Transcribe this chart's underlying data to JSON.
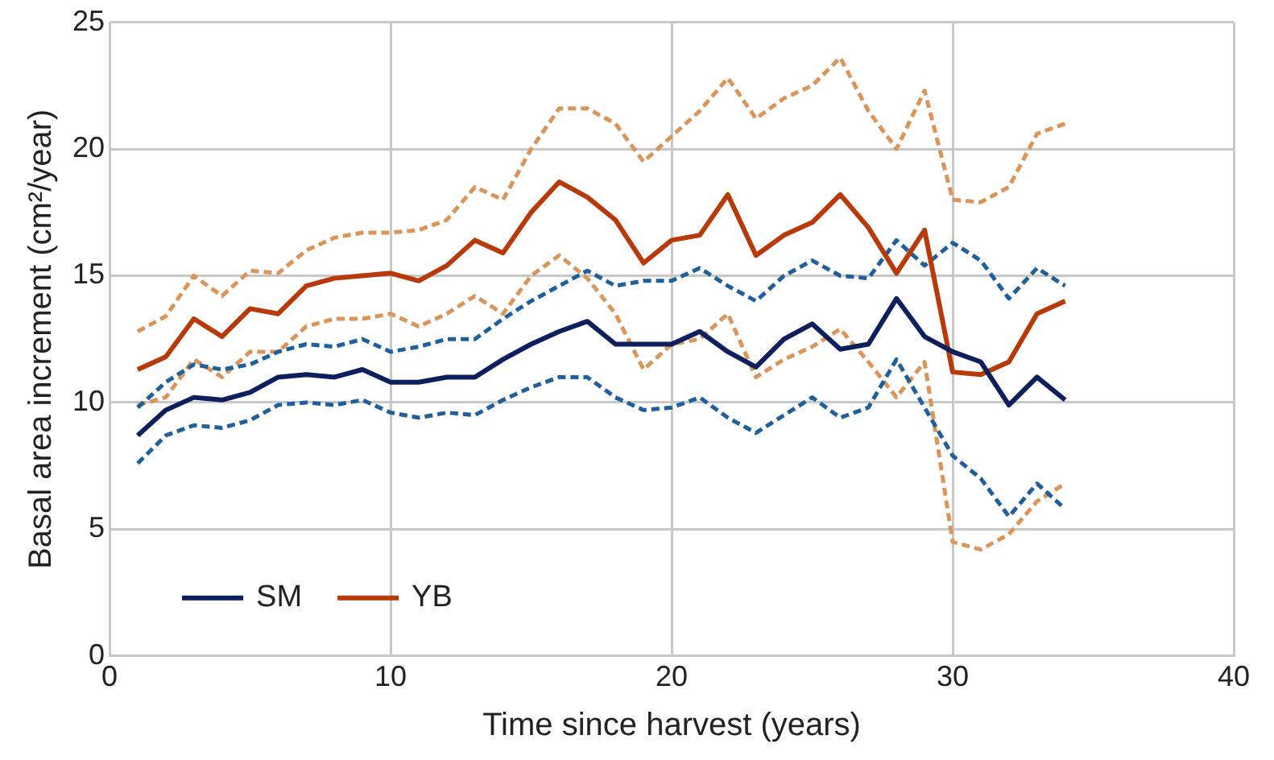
{
  "chart_data": {
    "type": "line",
    "xlabel": "Time since harvest (years)",
    "ylabel": "Basal area increment (cm²/year)",
    "x": [
      1,
      2,
      3,
      4,
      5,
      6,
      7,
      8,
      9,
      10,
      11,
      12,
      13,
      14,
      15,
      16,
      17,
      18,
      19,
      20,
      21,
      22,
      23,
      24,
      25,
      26,
      27,
      28,
      29,
      30,
      31,
      32,
      33,
      34
    ],
    "xlim": [
      0,
      40
    ],
    "xticks": [
      0,
      10,
      20,
      30,
      40
    ],
    "ylim": [
      0,
      25
    ],
    "yticks": [
      0,
      5,
      10,
      15,
      20,
      25
    ],
    "grid": true,
    "legend": "bottom left",
    "marker": "none",
    "series": [
      {
        "name": "SM",
        "color": "#0d1f5c",
        "line_style": "solid",
        "values": [
          8.7,
          9.7,
          10.2,
          10.1,
          10.4,
          11.0,
          11.1,
          11.0,
          11.3,
          10.8,
          10.8,
          11.0,
          11.0,
          11.7,
          12.3,
          12.8,
          13.2,
          12.3,
          12.3,
          12.3,
          12.8,
          12.0,
          11.4,
          12.5,
          13.1,
          12.1,
          12.3,
          14.1,
          12.6,
          12.0,
          11.6,
          9.9,
          11.0,
          10.1
        ]
      },
      {
        "name": "YB",
        "color": "#b83a0a",
        "line_style": "solid",
        "values": [
          11.3,
          11.8,
          13.3,
          12.6,
          13.7,
          13.5,
          14.6,
          14.9,
          15.0,
          15.1,
          14.8,
          15.4,
          16.4,
          15.9,
          17.5,
          18.7,
          18.1,
          17.2,
          15.5,
          16.4,
          16.6,
          18.2,
          15.8,
          16.6,
          17.1,
          18.2,
          16.9,
          15.1,
          16.8,
          11.2,
          11.1,
          11.6,
          13.5,
          14.0
        ]
      },
      {
        "color": "#1f5f9a",
        "line_style": "dashed",
        "values": [
          9.8,
          10.8,
          11.5,
          11.3,
          11.5,
          12.0,
          12.3,
          12.2,
          12.5,
          12.0,
          12.2,
          12.5,
          12.5,
          13.3,
          14.0,
          14.6,
          15.2,
          14.6,
          14.8,
          14.8,
          15.3,
          14.6,
          14.0,
          15.0,
          15.6,
          15.0,
          14.9,
          16.4,
          15.4,
          16.3,
          15.6,
          14.1,
          15.3,
          14.6
        ]
      },
      {
        "color": "#1f5f9a",
        "line_style": "dashed",
        "values": [
          7.6,
          8.7,
          9.1,
          9.0,
          9.3,
          9.9,
          10.0,
          9.9,
          10.1,
          9.6,
          9.4,
          9.6,
          9.5,
          10.1,
          10.6,
          11.0,
          11.0,
          10.2,
          9.7,
          9.8,
          10.2,
          9.4,
          8.8,
          9.5,
          10.2,
          9.4,
          9.8,
          11.7,
          9.8,
          7.9,
          7.0,
          5.5,
          6.8,
          5.8
        ]
      },
      {
        "color": "#d9955a",
        "line_style": "dashed",
        "values": [
          12.8,
          13.4,
          15.0,
          14.2,
          15.2,
          15.1,
          16.0,
          16.5,
          16.7,
          16.7,
          16.8,
          17.2,
          18.5,
          18.0,
          20.0,
          21.6,
          21.6,
          21.0,
          19.5,
          20.5,
          21.5,
          22.8,
          21.2,
          22.0,
          22.5,
          23.6,
          21.5,
          20.0,
          22.3,
          18.0,
          17.9,
          18.5,
          20.6,
          21.0
        ]
      },
      {
        "color": "#d9955a",
        "line_style": "dashed",
        "values": [
          9.9,
          10.2,
          11.7,
          11.0,
          12.0,
          12.0,
          13.0,
          13.3,
          13.3,
          13.5,
          13.0,
          13.5,
          14.2,
          13.5,
          15.0,
          15.8,
          14.9,
          13.5,
          11.3,
          12.3,
          12.5,
          13.5,
          11.0,
          11.7,
          12.2,
          12.9,
          11.6,
          10.2,
          11.6,
          4.5,
          4.2,
          4.8,
          6.1,
          6.8
        ]
      }
    ]
  }
}
